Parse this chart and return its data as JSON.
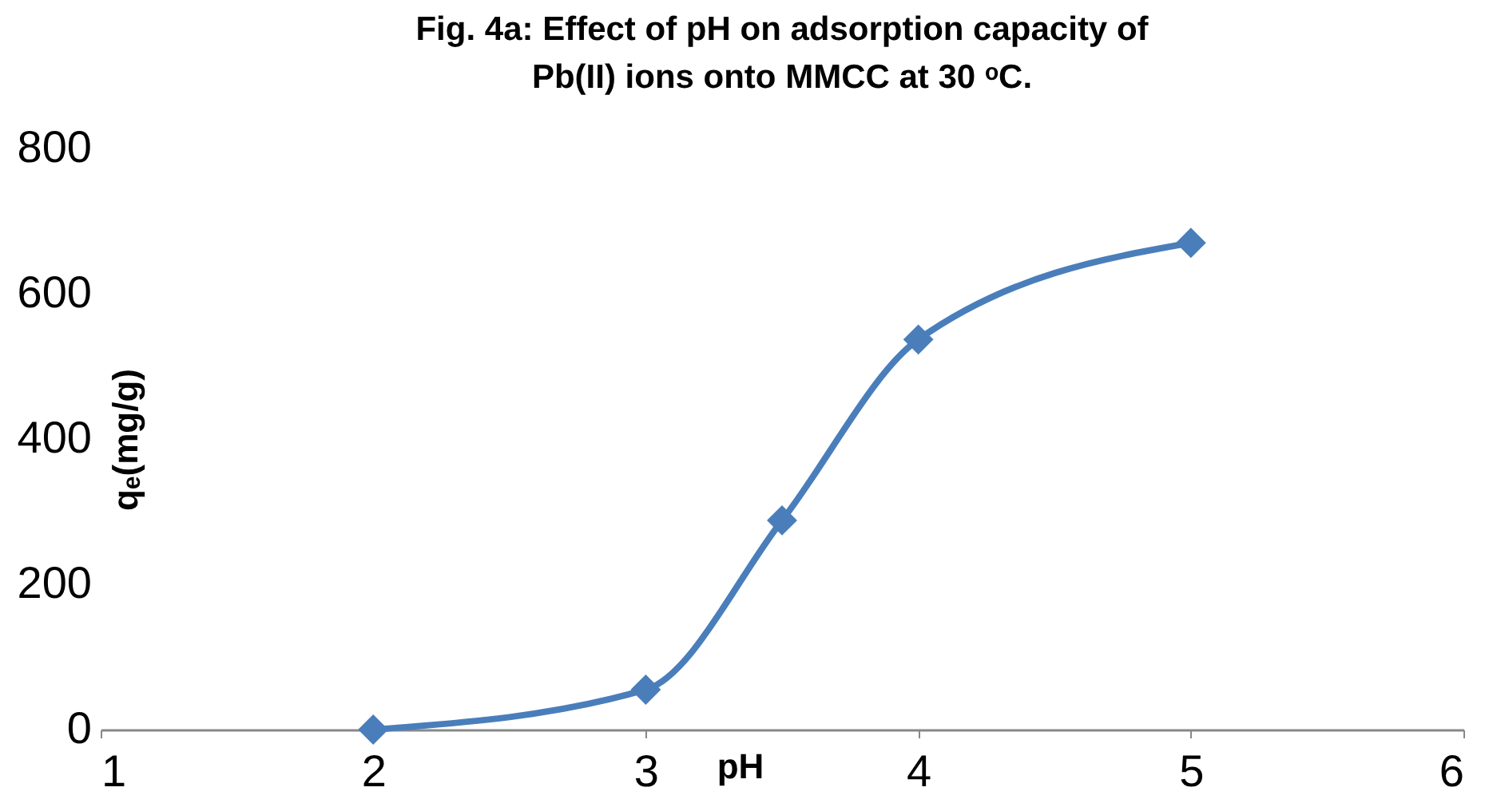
{
  "chart_data": {
    "type": "line",
    "title": "Fig. 4a: Effect of pH on adsorption capacity of Pb(II) ions onto MMCC at 30 ᵒC.",
    "xlabel": "pH",
    "ylabel": "qₑ(mg/g)",
    "x": [
      2,
      3,
      3.5,
      4,
      5
    ],
    "series": [
      {
        "color": "#4a7ebb",
        "values": [
          0,
          55,
          288,
          537,
          670
        ]
      }
    ],
    "xlim": [
      1,
      6
    ],
    "xticks": [
      1,
      2,
      3,
      4,
      5,
      6
    ],
    "ylim": [
      0,
      800
    ],
    "yticks": [
      0,
      200,
      400,
      600,
      800
    ],
    "grid": false,
    "marker": "diamond",
    "line_style": "solid"
  }
}
